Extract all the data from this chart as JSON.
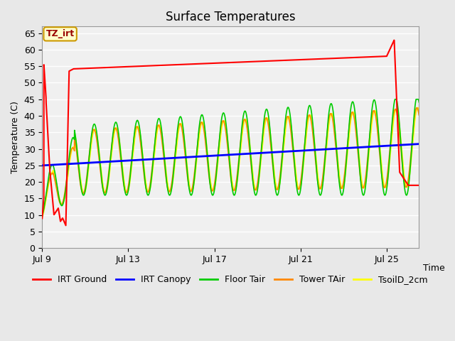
{
  "title": "Surface Temperatures",
  "xlabel": "Time",
  "ylabel": "Temperature (C)",
  "ylim": [
    0,
    67
  ],
  "yticks": [
    0,
    5,
    10,
    15,
    20,
    25,
    30,
    35,
    40,
    45,
    50,
    55,
    60,
    65
  ],
  "xtick_labels": [
    "Jul 9",
    "Jul 13",
    "Jul 17",
    "Jul 21",
    "Jul 25"
  ],
  "xtick_positions": [
    0,
    4,
    8,
    12,
    16
  ],
  "xlim": [
    0,
    17.5
  ],
  "series_colors": {
    "IRT Ground": "#ff0000",
    "IRT Canopy": "#0000ff",
    "Floor Tair": "#00cc00",
    "Tower TAir": "#ff8800",
    "TsoilD_2cm": "#ffff00"
  },
  "annotation_text": "TZ_irt",
  "background_color": "#e8e8e8",
  "plot_bg_color": "#f0f0f0",
  "grid_color": "#ffffff",
  "title_fontsize": 12,
  "axis_label_fontsize": 9,
  "tick_fontsize": 9,
  "legend_fontsize": 9
}
